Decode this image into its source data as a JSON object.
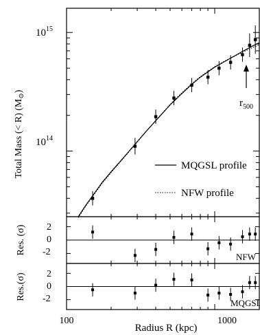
{
  "chart_data": [
    {
      "type": "line",
      "xlabel": "Radius R (kpc)",
      "ylabel": "Total Mass (< R) (M",
      "ylabel_symbol": "⊙",
      "x_scale": "log",
      "y_scale": "log",
      "xlim": [
        100,
        2000
      ],
      "ylim": [
        28000000000000,
        1600000000000000
      ],
      "ytick_labels": [
        {
          "base": "10",
          "exp": "14",
          "value": 100000000000000
        },
        {
          "base": "10",
          "exp": "15",
          "value": 1000000000000000
        }
      ],
      "series": [
        {
          "name": "MQGSL profile",
          "style": "solid",
          "x": [
            120,
            135,
            150,
            175,
            200,
            250,
            300,
            350,
            400,
            500,
            600,
            700,
            800,
            1000,
            1200,
            1500,
            1800,
            2000
          ],
          "y": [
            28000000000000,
            35000000000000,
            42000000000000,
            55000000000000,
            67000000000000,
            92000000000000,
            120000000000000,
            150000000000000,
            180000000000000,
            245000000000000,
            305000000000000,
            365000000000000,
            420000000000000,
            510000000000000,
            580000000000000,
            680000000000000,
            770000000000000,
            820000000000000
          ]
        },
        {
          "name": "NFW profile",
          "style": "dotted",
          "x": [
            120,
            135,
            150,
            175,
            200,
            250,
            300,
            350,
            400,
            500,
            600,
            700,
            800,
            1000,
            1200,
            1500,
            1800,
            2000
          ],
          "y": [
            27500000000000,
            34500000000000,
            41500000000000,
            54000000000000,
            66000000000000,
            91000000000000,
            119000000000000,
            150000000000000,
            181000000000000,
            248000000000000,
            310000000000000,
            370000000000000,
            425000000000000,
            515000000000000,
            585000000000000,
            670000000000000,
            745000000000000,
            790000000000000
          ]
        }
      ],
      "points": {
        "x": [
          150,
          290,
          400,
          530,
          700,
          900,
          1070,
          1280,
          1540,
          1720,
          1880
        ],
        "y": [
          40000000000000,
          110000000000000,
          195000000000000,
          280000000000000,
          360000000000000,
          420000000000000,
          500000000000000,
          560000000000000,
          650000000000000,
          780000000000000,
          870000000000000
        ],
        "err": [
          0.06,
          0.07,
          0.06,
          0.06,
          0.06,
          0.06,
          0.06,
          0.06,
          0.06,
          0.1,
          0.12
        ]
      },
      "annotation": {
        "text": "r",
        "subscript": "500",
        "x": 1720
      },
      "legend_position": "right"
    },
    {
      "type": "scatter",
      "ylabel": "Res. (σ)",
      "label": "NFW",
      "ylim": [
        -3.5,
        3.5
      ],
      "ytick_labels": [
        "2",
        "0",
        "-2"
      ],
      "reference_line": 0,
      "x": [
        150,
        290,
        400,
        530,
        700,
        900,
        1070,
        1280,
        1540,
        1720,
        1880
      ],
      "y": [
        1.2,
        -2.3,
        -1.4,
        0.4,
        0.9,
        -1.3,
        -0.4,
        -0.6,
        0.5,
        0.9,
        0.9
      ],
      "err": [
        1.0,
        1.0,
        1.0,
        1.0,
        1.0,
        1.0,
        1.0,
        1.0,
        1.0,
        1.0,
        1.0
      ]
    },
    {
      "type": "scatter",
      "ylabel": "Res.(σ)",
      "label": "MQGSL",
      "ylim": [
        -3.5,
        3.5
      ],
      "ytick_labels": [
        "2",
        "0",
        "-2"
      ],
      "reference_line": 0,
      "x": [
        150,
        290,
        400,
        530,
        700,
        900,
        1070,
        1280,
        1540,
        1720,
        1880
      ],
      "y": [
        -0.5,
        -1.0,
        0.2,
        1.1,
        1.0,
        -1.3,
        -1.0,
        -1.2,
        -0.8,
        0.6,
        0.6
      ],
      "err": [
        1.0,
        1.0,
        1.0,
        1.0,
        1.0,
        1.0,
        1.0,
        1.0,
        1.0,
        1.0,
        1.0
      ]
    }
  ],
  "xtick_labels": [
    {
      "label": "100",
      "value": 100
    },
    {
      "label": "1000",
      "value": 1000
    }
  ],
  "xlabel": "Radius  R (kpc)"
}
